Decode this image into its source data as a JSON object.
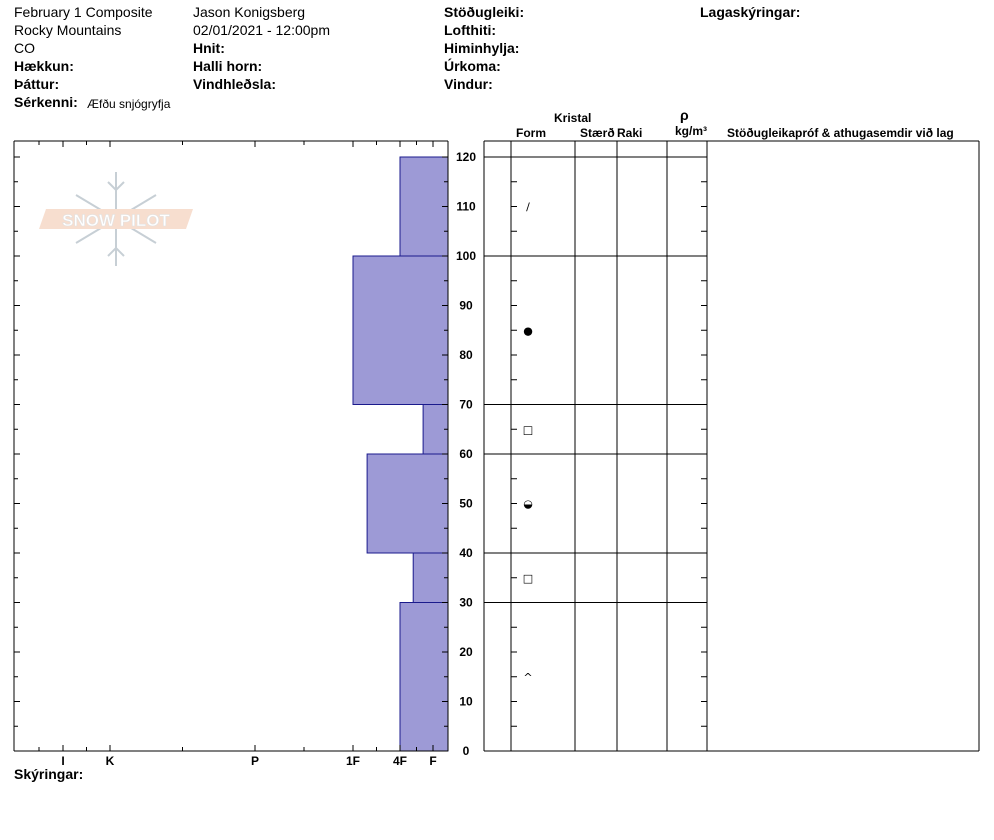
{
  "header": {
    "col1": [
      "February 1 Composite",
      "Rocky Mountains",
      "CO"
    ],
    "col1_labels": [
      "Hækkun:",
      "Þáttur:"
    ],
    "serkenni_label": "Sérkenni:",
    "serkenni_value": "Æfðu snjógryfja",
    "col2": [
      "Jason Konigsberg",
      "02/01/2021 - 12:00pm"
    ],
    "col2_labels": [
      "Hnit:",
      "Halli horn:",
      "Vindhleðsla:"
    ],
    "col3_labels": [
      "Stöðugleiki:",
      "Lofthiti:",
      "Himinhylja:",
      "Úrkoma:",
      "Vindur:"
    ],
    "col4_label": "Lagaskýringar:"
  },
  "logo_text": "SNOW PILOT",
  "table_headers": {
    "kristal": "Kristal",
    "form": "Form",
    "staerd": "Stærð",
    "raki": "Raki",
    "rho": "ρ",
    "density_unit": "kg/m³",
    "comments": "Stöðugleikapróf & athugasemdir við lag"
  },
  "footer": {
    "skyringar": "Skýringar:"
  },
  "colors": {
    "hardness_fill": "#9d9ad6",
    "hardness_stroke": "#1a1a8c"
  },
  "chart_data": {
    "type": "bar",
    "title": "",
    "xlabel": "",
    "ylabel": "",
    "ylim": [
      0,
      120
    ],
    "yticks": [
      0,
      10,
      20,
      30,
      40,
      50,
      60,
      70,
      80,
      90,
      100,
      110,
      120
    ],
    "hardness_scale": [
      {
        "label": "I",
        "value": 1
      },
      {
        "label": "K",
        "value": 2
      },
      {
        "label": "P",
        "value": 3
      },
      {
        "label": "1F",
        "value": 4
      },
      {
        "label": "4F",
        "value": 5
      },
      {
        "label": "F",
        "value": 6
      }
    ],
    "layers": [
      {
        "bottom": 100,
        "top": 120,
        "hardness": 5,
        "form": "/"
      },
      {
        "bottom": 70,
        "top": 100,
        "hardness": 4,
        "form": "●"
      },
      {
        "bottom": 60,
        "top": 70,
        "hardness": 5.7,
        "form": "□"
      },
      {
        "bottom": 40,
        "top": 60,
        "hardness": 4.3,
        "form": "◒"
      },
      {
        "bottom": 30,
        "top": 40,
        "hardness": 5.4,
        "form": "□"
      },
      {
        "bottom": 0,
        "top": 30,
        "hardness": 5,
        "form": "^"
      }
    ]
  }
}
